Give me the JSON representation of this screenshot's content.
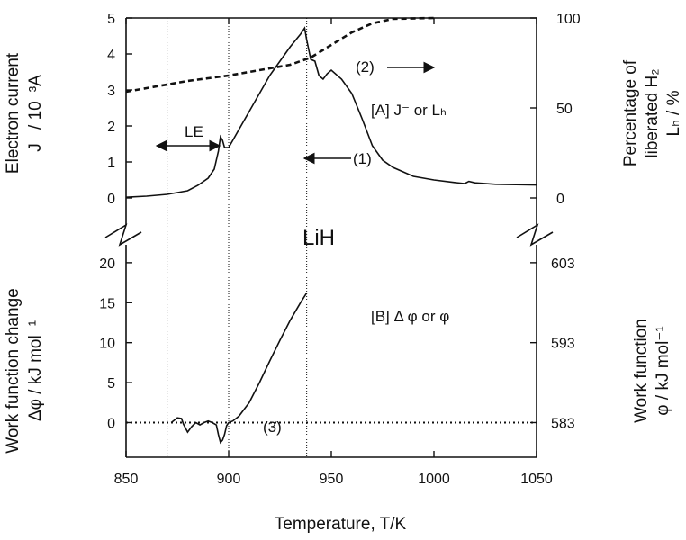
{
  "chart_data": {
    "type": "line",
    "xlabel": "Temperature,  T/K",
    "xticks": [
      850,
      900,
      950,
      1000,
      1050
    ],
    "xlim": [
      850,
      1050
    ],
    "panel_a": {
      "tag": "[A] J⁻ or Lₕ",
      "ylabel_left_1": "Electron current",
      "ylabel_left_2": "J⁻ / 10⁻³A",
      "ylabel_right_1": "Percentage of",
      "ylabel_right_2": "liberated H₂",
      "ylabel_right_3": "Lₕ / %",
      "yticks_left": [
        "0",
        "1",
        "2",
        "3",
        "4",
        "5"
      ],
      "ylim_left": [
        0,
        5
      ],
      "yticks_right": [
        "0",
        "50",
        "100"
      ],
      "ylim_right": [
        0,
        100
      ],
      "series": [
        {
          "label": "(1)",
          "style": "solid",
          "axis": "left",
          "x": [
            850,
            860,
            870,
            875,
            880,
            885,
            890,
            893,
            895,
            896,
            897,
            898,
            900,
            902,
            905,
            910,
            915,
            920,
            925,
            930,
            935,
            937,
            938,
            940,
            942,
            944,
            946,
            948,
            950,
            955,
            960,
            965,
            970,
            975,
            980,
            990,
            1000,
            1010,
            1015,
            1017,
            1020,
            1030,
            1040,
            1050
          ],
          "y": [
            0.02,
            0.05,
            0.1,
            0.15,
            0.2,
            0.35,
            0.55,
            0.8,
            1.3,
            1.7,
            1.6,
            1.4,
            1.4,
            1.6,
            1.9,
            2.4,
            2.9,
            3.4,
            3.8,
            4.2,
            4.55,
            4.72,
            4.4,
            3.85,
            3.8,
            3.4,
            3.3,
            3.45,
            3.55,
            3.3,
            2.9,
            2.2,
            1.45,
            1.05,
            0.85,
            0.6,
            0.5,
            0.43,
            0.4,
            0.46,
            0.42,
            0.38,
            0.37,
            0.36
          ]
        },
        {
          "label": "(2)",
          "style": "dashed",
          "axis": "right",
          "x": [
            850,
            860,
            870,
            880,
            890,
            900,
            910,
            920,
            930,
            940,
            950,
            960,
            970,
            980,
            1000
          ],
          "y": [
            59,
            61,
            63,
            65,
            66.5,
            68,
            70,
            72,
            74,
            78,
            85,
            92,
            97,
            99.5,
            100
          ]
        }
      ]
    },
    "panel_b": {
      "tag": "[B] Δ φ or  φ",
      "ylabel_left_1": "Work function change",
      "ylabel_left_2": "Δφ / kJ mol⁻¹",
      "ylabel_right_1": "Work function",
      "ylabel_right_2": "φ / kJ mol⁻¹",
      "yticks_left": [
        "0",
        "5",
        "10",
        "15",
        "20"
      ],
      "ylim_left": [
        -4,
        21
      ],
      "yticks_right": [
        "583",
        "593",
        "603"
      ],
      "series": [
        {
          "label": "(3)",
          "style": "solid",
          "axis": "left",
          "x": [
            872,
            875,
            877,
            878,
            880,
            882,
            884,
            886,
            888,
            890,
            892,
            894,
            895,
            896,
            897,
            898,
            899,
            900,
            902,
            905,
            910,
            915,
            920,
            925,
            930,
            935,
            938
          ],
          "y": [
            0,
            0.6,
            0.5,
            -0.2,
            -1.2,
            -0.5,
            0,
            -0.3,
            0,
            0.2,
            0,
            -0.3,
            -1.5,
            -2.5,
            -2.2,
            -1.5,
            -0.4,
            0,
            0.2,
            0.8,
            2.5,
            5,
            7.7,
            10.3,
            12.8,
            15,
            16.2
          ]
        }
      ],
      "zero_line": 0
    },
    "vlines": [
      870,
      900,
      938
    ],
    "annotations": {
      "le": "LE",
      "lih": "LiH",
      "label_1": "(1)",
      "label_2": "(2)",
      "label_3": "(3)"
    }
  }
}
